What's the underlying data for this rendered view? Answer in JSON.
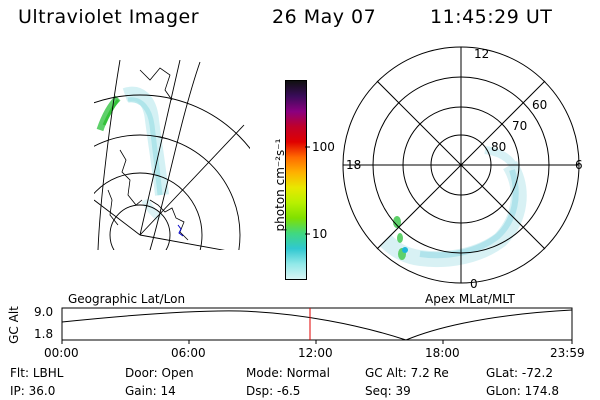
{
  "header": {
    "instrument": "Ultraviolet Imager",
    "date": "26 May 07",
    "time": "11:45:29 UT"
  },
  "colorbar": {
    "unit_label": "photon cm⁻²s⁻¹",
    "tick_labels": [
      "100",
      "10"
    ],
    "gradient": [
      "#101010",
      "#3a0c5a",
      "#8a0080",
      "#c0002a",
      "#e00000",
      "#ff6a00",
      "#ffb000",
      "#e8e800",
      "#b8f000",
      "#80e000",
      "#40d880",
      "#30c8d0",
      "#90e8e8",
      "#d8f4f4"
    ]
  },
  "panels": {
    "left": {
      "label": "Geographic Lat/Lon"
    },
    "right": {
      "label": "Apex MLat/MLT",
      "lat_labels": [
        "60",
        "70",
        "80"
      ],
      "mlt_labels": [
        "12",
        "18",
        "6",
        "0"
      ]
    }
  },
  "altplot": {
    "ylabel": "GC Alt",
    "ytick_labels": [
      "9.0",
      "1.8"
    ],
    "xtick_labels": [
      "00:00",
      "06:00",
      "12:00",
      "18:00",
      "23:59"
    ],
    "marker_color": "#e00000"
  },
  "info": {
    "row1": [
      {
        "key": "Flt:",
        "value": "LBHL"
      },
      {
        "key": "Door:",
        "value": "Open"
      },
      {
        "key": "Mode:",
        "value": "Normal"
      },
      {
        "key": "GC Alt:",
        "value": "7.2 Re"
      },
      {
        "key": "GLat:",
        "value": "-72.2"
      }
    ],
    "row2": [
      {
        "key": "IP:",
        "value": "36.0"
      },
      {
        "key": "Gain:",
        "value": "14"
      },
      {
        "key": "Dsp:",
        "value": "-6.5"
      },
      {
        "key": "Seq:",
        "value": "39"
      },
      {
        "key": "GLon:",
        "value": "174.8"
      }
    ]
  }
}
